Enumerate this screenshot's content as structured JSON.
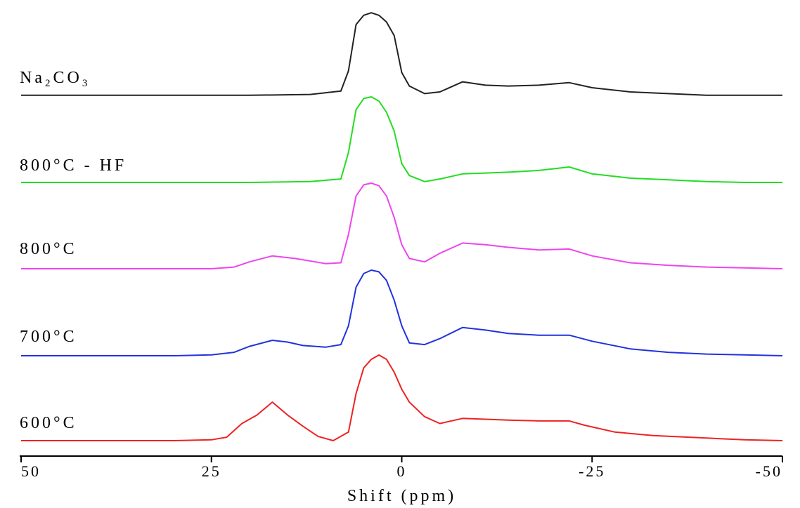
{
  "chart_data": {
    "type": "line",
    "title": "",
    "xlabel": "Shift (ppm)",
    "ylabel": "",
    "xlim": [
      50,
      -50
    ],
    "x_reversed": true,
    "stacked_offset": true,
    "grid": false,
    "x_ticks": [
      50,
      25,
      0,
      -25,
      -50
    ],
    "x_tick_labels": [
      "50",
      "25",
      "0",
      "-25",
      "-50"
    ],
    "series": [
      {
        "name": "Na2CO3",
        "label_main": "Na",
        "label_sub": "2",
        "label_main2": "CO",
        "label_sub2": "3",
        "color": "#222222",
        "x": [
          50,
          40,
          30,
          20,
          12,
          8,
          7,
          6,
          5,
          4,
          3,
          2,
          1,
          0,
          -1,
          -3,
          -5,
          -8,
          -11,
          -14,
          -18,
          -22,
          -25,
          -30,
          -35,
          -40,
          -45,
          -50
        ],
        "y": [
          0.01,
          0.01,
          0.01,
          0.01,
          0.02,
          0.06,
          0.3,
          0.85,
          0.96,
          0.99,
          0.96,
          0.88,
          0.72,
          0.28,
          0.12,
          0.03,
          0.05,
          0.17,
          0.13,
          0.12,
          0.13,
          0.16,
          0.1,
          0.05,
          0.03,
          0.01,
          0.01,
          0.01
        ]
      },
      {
        "name": "800°C - HF",
        "color": "#22dd22",
        "x": [
          50,
          40,
          30,
          20,
          12,
          8,
          7,
          6,
          5,
          4,
          3,
          2,
          1,
          0,
          -1,
          -3,
          -5,
          -8,
          -11,
          -14,
          -18,
          -22,
          -25,
          -30,
          -35,
          -40,
          -45,
          -50
        ],
        "y": [
          0.0,
          0.0,
          0.0,
          0.0,
          0.01,
          0.04,
          0.35,
          0.85,
          0.98,
          1.0,
          0.95,
          0.82,
          0.6,
          0.22,
          0.08,
          0.01,
          0.04,
          0.1,
          0.11,
          0.12,
          0.14,
          0.18,
          0.1,
          0.05,
          0.03,
          0.01,
          0.0,
          0.0
        ]
      },
      {
        "name": "800°C",
        "color": "#ee44ee",
        "x": [
          50,
          40,
          30,
          25,
          22,
          20,
          17,
          14,
          10,
          8,
          7,
          6,
          5,
          4,
          3,
          2,
          1,
          0,
          -1,
          -3,
          -5,
          -8,
          -11,
          -14,
          -18,
          -22,
          -25,
          -30,
          -35,
          -40,
          -45,
          -50
        ],
        "y": [
          0.0,
          0.0,
          0.0,
          0.0,
          0.02,
          0.08,
          0.15,
          0.12,
          0.06,
          0.07,
          0.4,
          0.85,
          0.98,
          1.0,
          0.97,
          0.85,
          0.6,
          0.28,
          0.12,
          0.08,
          0.18,
          0.3,
          0.28,
          0.25,
          0.22,
          0.23,
          0.15,
          0.07,
          0.04,
          0.02,
          0.01,
          0.0
        ]
      },
      {
        "name": "700°C",
        "color": "#2233dd",
        "x": [
          50,
          40,
          30,
          25,
          22,
          20,
          17,
          15,
          13,
          10,
          8,
          7,
          6,
          5,
          4,
          3,
          2,
          1,
          0,
          -1,
          -3,
          -5,
          -8,
          -11,
          -14,
          -18,
          -22,
          -25,
          -30,
          -35,
          -40,
          -45,
          -50
        ],
        "y": [
          0.0,
          0.0,
          0.0,
          0.01,
          0.04,
          0.11,
          0.18,
          0.16,
          0.12,
          0.1,
          0.13,
          0.35,
          0.8,
          0.96,
          1.0,
          0.98,
          0.88,
          0.65,
          0.35,
          0.15,
          0.13,
          0.2,
          0.33,
          0.3,
          0.26,
          0.24,
          0.24,
          0.17,
          0.08,
          0.04,
          0.02,
          0.01,
          0.0
        ]
      },
      {
        "name": "600°C",
        "color": "#ee2222",
        "x": [
          50,
          40,
          30,
          25,
          23,
          21,
          19,
          17,
          15,
          13,
          11,
          9,
          7,
          6,
          5,
          4,
          3,
          2,
          1,
          0,
          -1,
          -3,
          -5,
          -8,
          -11,
          -14,
          -18,
          -22,
          -24,
          -28,
          -33,
          -40,
          -45,
          -50
        ],
        "y": [
          0.0,
          0.0,
          0.0,
          0.01,
          0.04,
          0.2,
          0.3,
          0.45,
          0.3,
          0.17,
          0.05,
          0.0,
          0.1,
          0.55,
          0.85,
          0.95,
          1.0,
          0.95,
          0.8,
          0.6,
          0.45,
          0.28,
          0.2,
          0.26,
          0.25,
          0.24,
          0.23,
          0.23,
          0.18,
          0.1,
          0.06,
          0.03,
          0.01,
          0.0
        ]
      }
    ]
  }
}
